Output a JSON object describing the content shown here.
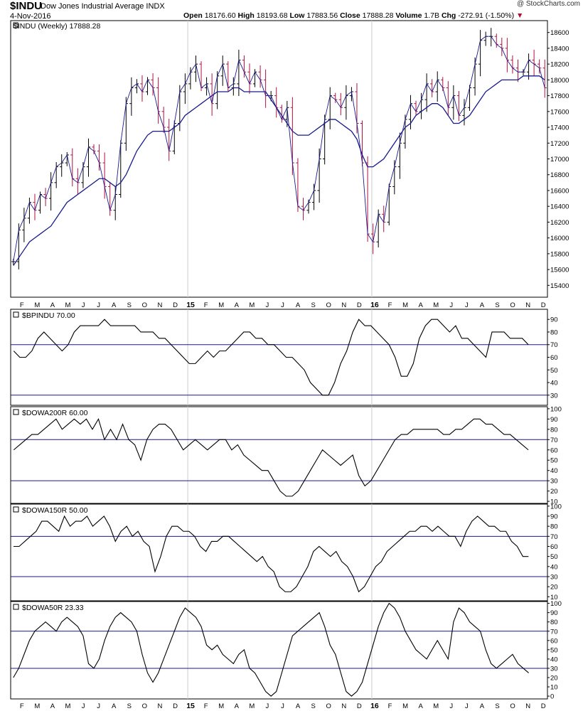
{
  "header": {
    "symbol": "$INDU",
    "name": "Dow Jones Industrial Average INDX",
    "date": "4-Nov-2016",
    "open_label": "Open",
    "open": "18176.60",
    "high_label": "High",
    "high": "18193.68",
    "low_label": "Low",
    "low": "17883.56",
    "close_label": "Close",
    "close": "17888.28",
    "volume_label": "Volume",
    "volume": "1.7B",
    "chg_label": "Chg",
    "chg": "-272.91 (-1.50%)",
    "chg_arrow": "▼",
    "credit": "@ StockCharts.com"
  },
  "colors": {
    "up_bar": "#000000",
    "down_bar": "#b01040",
    "moving_average": "#1a1a8c",
    "reference_lines": "#1a1a8c",
    "indicator_line": "#000000"
  },
  "x_axis": {
    "months": [
      "F",
      "M",
      "A",
      "M",
      "J",
      "J",
      "A",
      "S",
      "O",
      "N",
      "D",
      "15",
      "F",
      "M",
      "A",
      "M",
      "J",
      "J",
      "A",
      "S",
      "O",
      "N",
      "D",
      "16",
      "F",
      "M",
      "A",
      "M",
      "J",
      "J",
      "A",
      "S",
      "O",
      "N",
      "D"
    ],
    "year_labels": [
      "15",
      "16"
    ]
  },
  "chart_data": [
    {
      "type": "line",
      "panel": "price",
      "title": "$INDU (Weekly) 17888.28",
      "series": [
        {
          "name": "$INDU",
          "style": "ohlc-bars",
          "values": [
            15700,
            16100,
            16250,
            16450,
            16350,
            16550,
            16500,
            16700,
            16900,
            16950,
            17050,
            16750,
            16700,
            16900,
            17150,
            17100,
            16950,
            16650,
            16350,
            16550,
            17200,
            17700,
            17900,
            17950,
            17850,
            18000,
            17900,
            17600,
            17400,
            17100,
            17450,
            17850,
            17950,
            18100,
            18200,
            17900,
            17950,
            17700,
            18050,
            18200,
            17900,
            17950,
            18250,
            18100,
            17950,
            18100,
            18000,
            17800,
            17800,
            17650,
            17500,
            17650,
            16950,
            16400,
            16350,
            16450,
            16600,
            17000,
            17500,
            17800,
            17750,
            17650,
            17800,
            17850,
            17450,
            16950,
            16050,
            15950,
            16300,
            16200,
            16650,
            16900,
            17200,
            17500,
            17700,
            17600,
            17750,
            17950,
            17850,
            18000,
            17900,
            17650,
            17800,
            17550,
            17650,
            17900,
            18200,
            18500,
            18550,
            18550,
            18450,
            18400,
            18250,
            18150,
            18100,
            18100,
            18250,
            18200,
            18150,
            17900
          ]
        },
        {
          "name": "MA",
          "style": "line",
          "values": [
            15650,
            15750,
            15850,
            15950,
            16000,
            16050,
            16100,
            16150,
            16250,
            16350,
            16450,
            16500,
            16550,
            16600,
            16650,
            16700,
            16750,
            16750,
            16700,
            16650,
            16700,
            16800,
            16950,
            17100,
            17200,
            17300,
            17350,
            17350,
            17350,
            17350,
            17400,
            17450,
            17550,
            17600,
            17650,
            17700,
            17750,
            17800,
            17850,
            17850,
            17850,
            17900,
            17900,
            17850,
            17850,
            17850,
            17850,
            17850,
            17750,
            17650,
            17550,
            17450,
            17350,
            17300,
            17300,
            17300,
            17350,
            17400,
            17450,
            17500,
            17500,
            17450,
            17400,
            17350,
            17250,
            17050,
            16900,
            16900,
            16950,
            17000,
            17100,
            17200,
            17300,
            17400,
            17450,
            17550,
            17600,
            17650,
            17700,
            17700,
            17650,
            17550,
            17450,
            17450,
            17500,
            17550,
            17650,
            17750,
            17850,
            17900,
            17950,
            18000,
            18000,
            18000,
            18000,
            18050,
            18050,
            18050,
            18050,
            18000
          ]
        }
      ],
      "ylim": [
        15250,
        18750
      ],
      "yticks": [
        15400,
        15600,
        15800,
        16000,
        16200,
        16400,
        16600,
        16800,
        17000,
        17200,
        17400,
        17600,
        17800,
        18000,
        18200,
        18400,
        18600
      ]
    },
    {
      "type": "line",
      "panel": "indicator",
      "title": "$BPINDU 70.00",
      "values": [
        65,
        60,
        60,
        65,
        75,
        80,
        75,
        70,
        65,
        70,
        80,
        85,
        85,
        85,
        85,
        90,
        85,
        85,
        85,
        85,
        85,
        80,
        80,
        80,
        75,
        75,
        70,
        65,
        60,
        55,
        55,
        60,
        65,
        60,
        65,
        65,
        70,
        75,
        80,
        80,
        75,
        75,
        70,
        70,
        65,
        60,
        60,
        55,
        50,
        40,
        35,
        30,
        30,
        40,
        55,
        65,
        80,
        90,
        85,
        85,
        80,
        75,
        70,
        60,
        45,
        45,
        55,
        75,
        85,
        90,
        90,
        85,
        80,
        85,
        75,
        75,
        70,
        65,
        60,
        80,
        80,
        80,
        75,
        75,
        75,
        70
      ],
      "ylim": [
        22,
        98
      ],
      "yticks": [
        30,
        40,
        50,
        60,
        70,
        80,
        90
      ],
      "hlines": [
        30,
        70
      ]
    },
    {
      "type": "line",
      "panel": "indicator",
      "title": "$DOWA200R 60.00",
      "values": [
        60,
        65,
        70,
        75,
        75,
        80,
        85,
        90,
        80,
        85,
        90,
        85,
        90,
        80,
        90,
        70,
        80,
        70,
        85,
        70,
        65,
        50,
        70,
        80,
        85,
        85,
        80,
        70,
        60,
        65,
        70,
        65,
        60,
        65,
        70,
        70,
        60,
        65,
        55,
        50,
        45,
        40,
        40,
        30,
        20,
        15,
        15,
        20,
        30,
        40,
        50,
        60,
        55,
        50,
        45,
        50,
        55,
        35,
        25,
        30,
        40,
        50,
        60,
        70,
        75,
        75,
        80,
        80,
        80,
        80,
        80,
        75,
        75,
        80,
        80,
        85,
        90,
        90,
        85,
        85,
        80,
        75,
        75,
        70,
        65,
        60
      ],
      "ylim": [
        8,
        102
      ],
      "yticks": [
        10,
        20,
        30,
        40,
        50,
        60,
        70,
        80,
        90,
        100
      ],
      "hlines": [
        30,
        70
      ]
    },
    {
      "type": "line",
      "panel": "indicator",
      "title": "$DOWA150R 50.00",
      "values": [
        60,
        60,
        65,
        70,
        75,
        85,
        85,
        80,
        75,
        90,
        80,
        85,
        85,
        90,
        80,
        85,
        90,
        80,
        65,
        75,
        80,
        70,
        75,
        65,
        60,
        35,
        50,
        70,
        80,
        80,
        75,
        75,
        70,
        60,
        55,
        65,
        65,
        70,
        70,
        65,
        60,
        55,
        50,
        45,
        50,
        40,
        35,
        20,
        15,
        15,
        20,
        30,
        40,
        55,
        60,
        55,
        50,
        55,
        45,
        40,
        30,
        15,
        20,
        30,
        40,
        45,
        55,
        60,
        65,
        70,
        75,
        75,
        80,
        80,
        75,
        80,
        75,
        70,
        70,
        60,
        75,
        85,
        90,
        85,
        80,
        80,
        75,
        75,
        65,
        60,
        50,
        50
      ],
      "ylim": [
        6,
        102
      ],
      "yticks": [
        10,
        20,
        30,
        40,
        50,
        60,
        70,
        80,
        90,
        100
      ],
      "hlines": [
        30,
        70
      ]
    },
    {
      "type": "line",
      "panel": "indicator",
      "title": "$DOWA50R 23.33",
      "values": [
        20,
        30,
        45,
        60,
        70,
        75,
        80,
        75,
        70,
        80,
        85,
        80,
        75,
        65,
        35,
        30,
        40,
        60,
        75,
        85,
        90,
        85,
        80,
        70,
        45,
        25,
        15,
        25,
        40,
        55,
        70,
        85,
        95,
        90,
        85,
        75,
        55,
        50,
        55,
        45,
        40,
        35,
        45,
        50,
        30,
        25,
        15,
        5,
        0,
        5,
        25,
        45,
        65,
        70,
        75,
        80,
        85,
        90,
        75,
        55,
        45,
        25,
        5,
        0,
        5,
        15,
        35,
        55,
        75,
        90,
        100,
        95,
        85,
        70,
        60,
        50,
        45,
        40,
        50,
        60,
        50,
        40,
        80,
        95,
        90,
        80,
        75,
        70,
        50,
        35,
        30,
        35,
        40,
        45,
        35,
        30,
        25
      ],
      "ylim": [
        -3,
        102
      ],
      "yticks": [
        0,
        10,
        20,
        30,
        40,
        50,
        60,
        70,
        80,
        90,
        100
      ],
      "hlines": [
        30,
        70
      ]
    }
  ]
}
